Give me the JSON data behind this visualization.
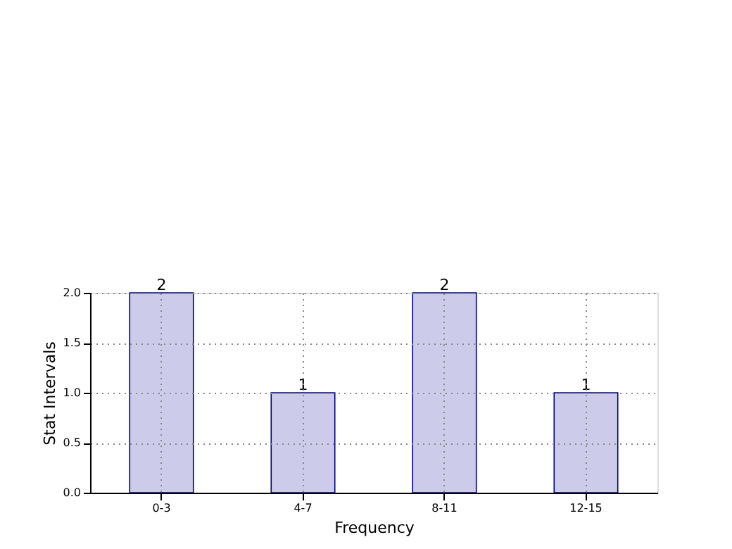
{
  "chart_data": {
    "type": "bar",
    "xlabel": "Frequency",
    "ylabel": "Stat Intervals",
    "categories": [
      "0-3",
      "4-7",
      "8-11",
      "12-15"
    ],
    "values": [
      2,
      1,
      2,
      1
    ],
    "color": "#ccccea",
    "ylim": [
      0,
      2
    ],
    "yticks": [
      {
        "value": 0,
        "label": "0.0"
      },
      {
        "value": 0.5,
        "label": "0.5"
      },
      {
        "value": 1,
        "label": "1.0"
      },
      {
        "value": 1.5,
        "label": "1.5"
      },
      {
        "value": 2,
        "label": "2.0"
      }
    ],
    "grid": true,
    "data_labels": true
  }
}
